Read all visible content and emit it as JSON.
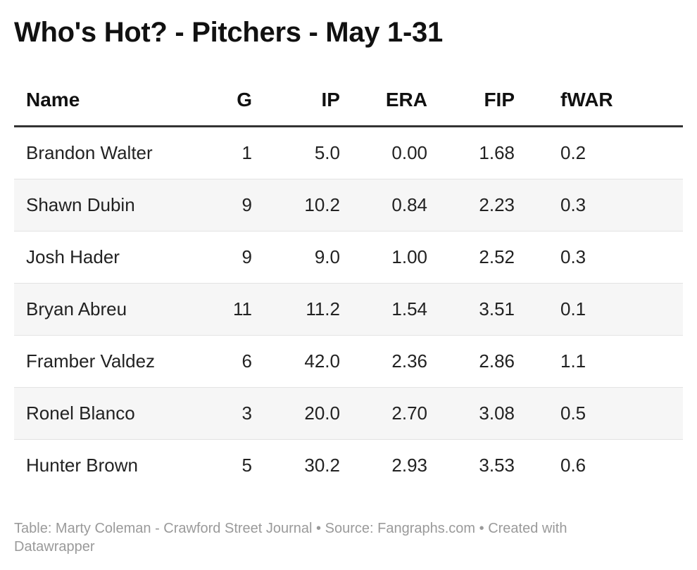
{
  "title": "Who's Hot? - Pitchers - May 1-31",
  "chart_data": {
    "type": "table",
    "columns": [
      "Name",
      "G",
      "IP",
      "ERA",
      "FIP",
      "fWAR"
    ],
    "rows": [
      [
        "Brandon Walter",
        "1",
        "5.0",
        "0.00",
        "1.68",
        "0.2"
      ],
      [
        "Shawn Dubin",
        "9",
        "10.2",
        "0.84",
        "2.23",
        "0.3"
      ],
      [
        "Josh Hader",
        "9",
        "9.0",
        "1.00",
        "2.52",
        "0.3"
      ],
      [
        "Bryan Abreu",
        "11",
        "11.2",
        "1.54",
        "3.51",
        "0.1"
      ],
      [
        "Framber Valdez",
        "6",
        "42.0",
        "2.36",
        "2.86",
        "1.1"
      ],
      [
        "Ronel Blanco",
        "3",
        "20.0",
        "2.70",
        "3.08",
        "0.5"
      ],
      [
        "Hunter Brown",
        "5",
        "30.2",
        "2.93",
        "3.53",
        "0.6"
      ]
    ]
  },
  "footer": {
    "table_credit": "Table: Marty Coleman - Crawford Street Journal",
    "separator": " • ",
    "source": "Source: Fangraphs.com",
    "created_with": "Created with Datawrapper"
  },
  "colors": {
    "header_rule": "#333333",
    "row_stripe": "#f6f6f6",
    "footer_text": "#9a9a9a"
  }
}
